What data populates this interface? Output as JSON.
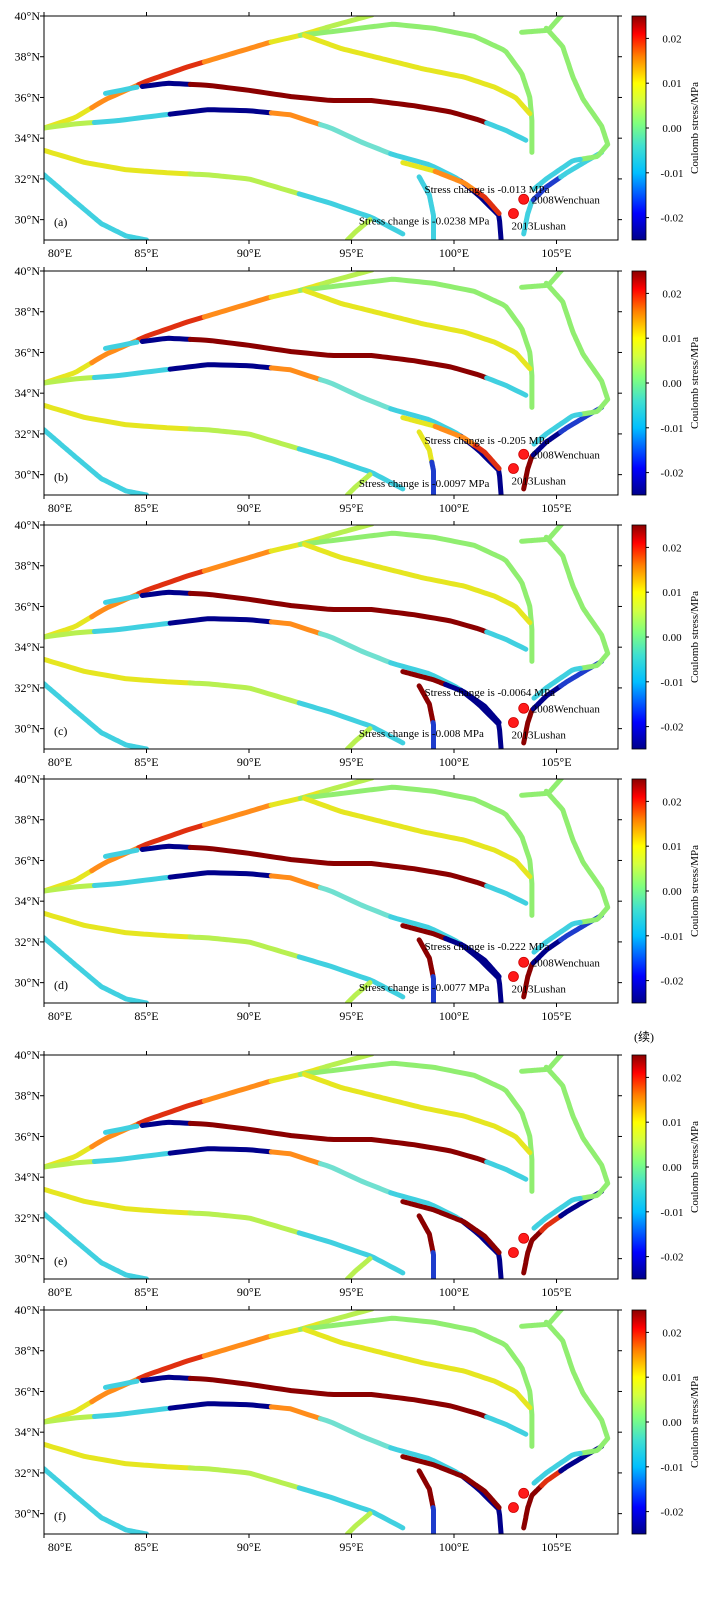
{
  "figure": {
    "continuation_label": "(续)",
    "colorbar": {
      "title": "Coulomb stress/MPa",
      "ticks": [
        "0.02",
        "0.01",
        "0.00",
        "-0.01",
        "-0.02"
      ],
      "tick_values": [
        0.02,
        0.01,
        0.0,
        -0.01,
        -0.02
      ],
      "range": [
        -0.025,
        0.025
      ],
      "colormap": [
        "#00008b",
        "#0000ff",
        "#00bfff",
        "#40e0d0",
        "#7fff7f",
        "#d4ff40",
        "#ffff00",
        "#ff8000",
        "#ff0000",
        "#8b0000"
      ]
    },
    "axes": {
      "x_ticks": [
        "80°E",
        "85°E",
        "90°E",
        "95°E",
        "100°E",
        "105°E"
      ],
      "x_values": [
        80,
        85,
        90,
        95,
        100,
        105
      ],
      "y_ticks": [
        "40°N",
        "38°N",
        "36°N",
        "34°N",
        "32°N",
        "30°N"
      ],
      "y_values": [
        40,
        38,
        36,
        34,
        32,
        30
      ],
      "lon_range": [
        80,
        108
      ],
      "lat_range": [
        29,
        40
      ]
    },
    "events": [
      {
        "label": "2008Wenchuan",
        "lon": 103.4,
        "lat": 31.0
      },
      {
        "label": "2013Lushan",
        "lon": 102.9,
        "lat": 30.3
      }
    ]
  },
  "panels": [
    {
      "label": "(a)",
      "show_event_labels": true,
      "annotations": [
        {
          "text": "Stress change is -0.013 MPa"
        },
        {
          "text": "Stress change is -0.0238 MPa"
        }
      ]
    },
    {
      "label": "(b)",
      "show_event_labels": true,
      "annotations": [
        {
          "text": "Stress change is -0.205 MPa"
        },
        {
          "text": "Stress change is -0.0097 MPa"
        }
      ]
    },
    {
      "label": "(c)",
      "show_event_labels": true,
      "annotations": [
        {
          "text": "Stress change is -0.0064 MPa"
        },
        {
          "text": "Stress change is -0.008 MPa"
        }
      ]
    },
    {
      "label": "(d)",
      "show_event_labels": true,
      "annotations": [
        {
          "text": "Stress change is -0.222 MPa"
        },
        {
          "text": "Stress change is -0.0077 MPa"
        }
      ]
    },
    {
      "label": "(e)",
      "show_event_labels": false,
      "annotations": []
    },
    {
      "label": "(f)",
      "show_event_labels": false,
      "annotations": []
    }
  ]
}
